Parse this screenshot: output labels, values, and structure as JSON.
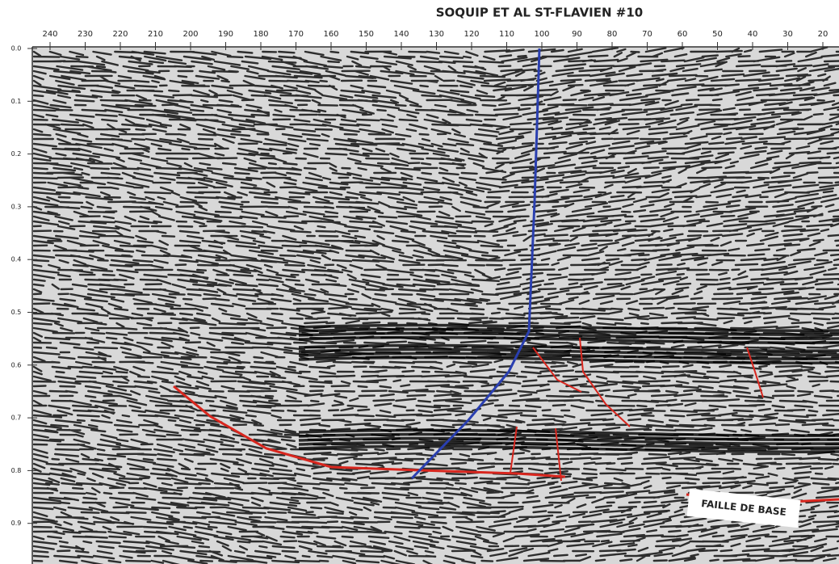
{
  "title": "SOQUIP ET AL ST-FLAVIEN #10",
  "x_labels": [
    "240",
    "230",
    "220",
    "210",
    "200",
    "190",
    "180",
    "170",
    "160",
    "150",
    "140",
    "130",
    "120",
    "110",
    "100",
    "90",
    "80",
    "70",
    "60",
    "50",
    "40",
    "30",
    "20"
  ],
  "y_labels": [
    "0.0",
    "0.1",
    "0.2",
    "0.3",
    "0.4",
    "0.5",
    "0.6",
    "0.7",
    "0.8",
    "0.9"
  ],
  "annotation": "FAILLE DE BASE"
}
